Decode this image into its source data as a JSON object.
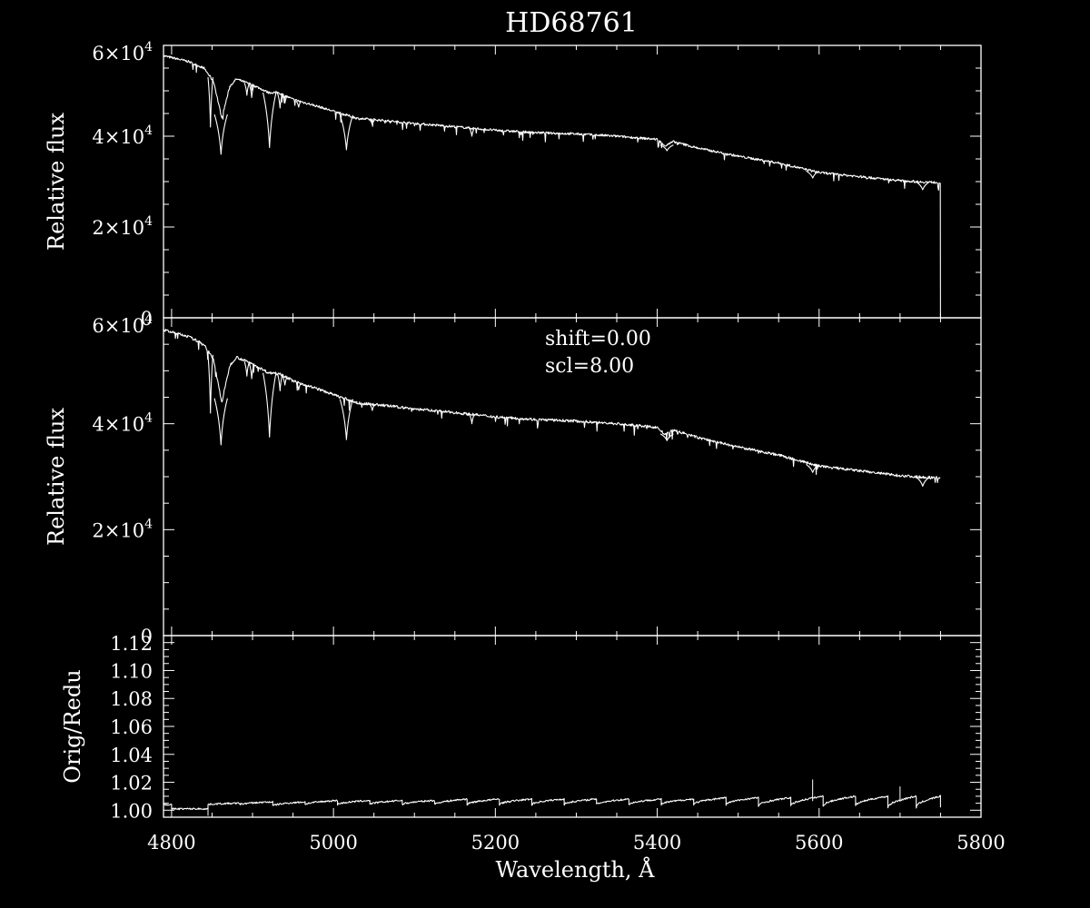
{
  "chart_data": [
    {
      "type": "line",
      "panel": "top",
      "title": "HD68761",
      "ylabel": "Relative flux",
      "xlabel": "",
      "xlim": [
        4790,
        5800
      ],
      "ylim": [
        0,
        60000
      ],
      "y_ticks": [
        {
          "value": 0,
          "base": "0",
          "exp": ""
        },
        {
          "value": 20000,
          "base": "2×10",
          "exp": "4"
        },
        {
          "value": 40000,
          "base": "4×10",
          "exp": "4"
        },
        {
          "value": 60000,
          "base": "6×10",
          "exp": "4"
        }
      ],
      "x": [
        4790,
        4820,
        4840,
        4852,
        4862,
        4872,
        4880,
        4900,
        4920,
        4932,
        4950,
        4980,
        5000,
        5030,
        5060,
        5100,
        5150,
        5200,
        5250,
        5300,
        5350,
        5400,
        5410,
        5420,
        5450,
        5500,
        5550,
        5600,
        5650,
        5700,
        5730,
        5750
      ],
      "values": [
        57700,
        56500,
        55000,
        52000,
        44000,
        51000,
        52600,
        51300,
        49600,
        49600,
        48100,
        46600,
        45500,
        43900,
        43500,
        42800,
        42100,
        41300,
        40800,
        40500,
        40000,
        39300,
        37900,
        38800,
        37400,
        35600,
        34100,
        32000,
        31100,
        30200,
        29900,
        29800
      ],
      "series": [
        {
          "name": "",
          "x_drop": 5750,
          "drop_to": 0
        }
      ],
      "absorption_lines": [
        {
          "x": 4848,
          "min": 42000
        },
        {
          "x": 4861,
          "min": 36000
        },
        {
          "x": 4893,
          "min": 49000
        },
        {
          "x": 4899,
          "min": 48500
        },
        {
          "x": 4921,
          "min": 37500
        },
        {
          "x": 4934,
          "min": 46200
        },
        {
          "x": 4940,
          "min": 47300
        },
        {
          "x": 4957,
          "min": 46400
        },
        {
          "x": 5016,
          "min": 37000
        },
        {
          "x": 5048,
          "min": 42500
        },
        {
          "x": 5171,
          "min": 40000
        },
        {
          "x": 5412,
          "min": 36800
        },
        {
          "x": 5592,
          "min": 30800
        },
        {
          "x": 5728,
          "min": 28200
        }
      ]
    },
    {
      "type": "line",
      "panel": "middle",
      "title": "",
      "ylabel": "Relative flux",
      "xlabel": "",
      "xlim": [
        4790,
        5800
      ],
      "ylim": [
        0,
        60000
      ],
      "y_ticks": [
        {
          "value": 0,
          "base": "0",
          "exp": ""
        },
        {
          "value": 20000,
          "base": "2×10",
          "exp": "4"
        },
        {
          "value": 40000,
          "base": "4×10",
          "exp": "4"
        },
        {
          "value": 60000,
          "base": "6×10",
          "exp": "4"
        }
      ],
      "annotations": [
        "shift=0.00",
        "scl=8.00"
      ],
      "x": [
        4790,
        4820,
        4840,
        4852,
        4862,
        4872,
        4880,
        4900,
        4920,
        4932,
        4950,
        4980,
        5000,
        5030,
        5060,
        5100,
        5150,
        5200,
        5250,
        5300,
        5350,
        5400,
        5410,
        5420,
        5450,
        5500,
        5550,
        5600,
        5650,
        5700,
        5730,
        5750
      ],
      "values": [
        57700,
        56500,
        55000,
        52000,
        44000,
        51000,
        52600,
        51300,
        49600,
        49600,
        48100,
        46600,
        45500,
        43900,
        43500,
        42800,
        42100,
        41300,
        40800,
        40500,
        40000,
        39300,
        37900,
        38800,
        37400,
        35600,
        34100,
        32000,
        31100,
        30200,
        29900,
        29800
      ],
      "absorption_lines": [
        {
          "x": 4848,
          "min": 42000
        },
        {
          "x": 4861,
          "min": 36000
        },
        {
          "x": 4893,
          "min": 49000
        },
        {
          "x": 4899,
          "min": 48500
        },
        {
          "x": 4921,
          "min": 37500
        },
        {
          "x": 4934,
          "min": 46200
        },
        {
          "x": 4940,
          "min": 47300
        },
        {
          "x": 4957,
          "min": 46400
        },
        {
          "x": 5016,
          "min": 37000
        },
        {
          "x": 5048,
          "min": 42500
        },
        {
          "x": 5171,
          "min": 40000
        },
        {
          "x": 5412,
          "min": 36800
        },
        {
          "x": 5592,
          "min": 30800
        },
        {
          "x": 5728,
          "min": 28200
        }
      ]
    },
    {
      "type": "line",
      "panel": "bottom",
      "title": "",
      "ylabel": "Orig/Redu",
      "xlabel": "Wavelength, Å",
      "xlim": [
        4790,
        5800
      ],
      "ylim": [
        0.995,
        1.125
      ],
      "x_ticks": [
        4800,
        5000,
        5200,
        5400,
        5600,
        5800
      ],
      "y_ticks": [
        {
          "value": 1.0,
          "base": "1.00",
          "exp": ""
        },
        {
          "value": 1.02,
          "base": "1.02",
          "exp": ""
        },
        {
          "value": 1.04,
          "base": "1.04",
          "exp": ""
        },
        {
          "value": 1.06,
          "base": "1.06",
          "exp": ""
        },
        {
          "value": 1.08,
          "base": "1.08",
          "exp": ""
        },
        {
          "value": 1.1,
          "base": "1.10",
          "exp": ""
        },
        {
          "value": 1.12,
          "base": "1.12",
          "exp": ""
        }
      ],
      "segments": [
        {
          "x0": 4790,
          "x1": 4800,
          "y0": 1.004,
          "y1": 1.004
        },
        {
          "x0": 4800,
          "x1": 4845,
          "y0": 1.001,
          "y1": 1.001
        },
        {
          "x0": 4845,
          "x1": 4885,
          "y0": 1.004,
          "y1": 1.005
        },
        {
          "x0": 4885,
          "x1": 4925,
          "y0": 1.004,
          "y1": 1.006
        },
        {
          "x0": 4925,
          "x1": 4965,
          "y0": 1.003,
          "y1": 1.006
        },
        {
          "x0": 4965,
          "x1": 5005,
          "y0": 1.004,
          "y1": 1.007
        },
        {
          "x0": 5005,
          "x1": 5045,
          "y0": 1.004,
          "y1": 1.007
        },
        {
          "x0": 5045,
          "x1": 5085,
          "y0": 1.004,
          "y1": 1.007
        },
        {
          "x0": 5085,
          "x1": 5125,
          "y0": 1.004,
          "y1": 1.007
        },
        {
          "x0": 5125,
          "x1": 5165,
          "y0": 1.004,
          "y1": 1.008
        },
        {
          "x0": 5165,
          "x1": 5205,
          "y0": 1.004,
          "y1": 1.008
        },
        {
          "x0": 5205,
          "x1": 5245,
          "y0": 1.004,
          "y1": 1.008
        },
        {
          "x0": 5245,
          "x1": 5285,
          "y0": 1.004,
          "y1": 1.008
        },
        {
          "x0": 5285,
          "x1": 5325,
          "y0": 1.004,
          "y1": 1.008
        },
        {
          "x0": 5325,
          "x1": 5365,
          "y0": 1.004,
          "y1": 1.008
        },
        {
          "x0": 5365,
          "x1": 5405,
          "y0": 1.004,
          "y1": 1.008
        },
        {
          "x0": 5405,
          "x1": 5445,
          "y0": 1.004,
          "y1": 1.008
        },
        {
          "x0": 5445,
          "x1": 5485,
          "y0": 1.004,
          "y1": 1.009
        },
        {
          "x0": 5485,
          "x1": 5525,
          "y0": 1.004,
          "y1": 1.009
        },
        {
          "x0": 5525,
          "x1": 5565,
          "y0": 1.003,
          "y1": 1.009
        },
        {
          "x0": 5565,
          "x1": 5605,
          "y0": 1.003,
          "y1": 1.01
        },
        {
          "x0": 5605,
          "x1": 5645,
          "y0": 1.003,
          "y1": 1.01
        },
        {
          "x0": 5645,
          "x1": 5685,
          "y0": 1.003,
          "y1": 1.01
        },
        {
          "x0": 5685,
          "x1": 5720,
          "y0": 1.002,
          "y1": 1.01
        },
        {
          "x0": 5720,
          "x1": 5750,
          "y0": 1.002,
          "y1": 1.01
        }
      ],
      "spikes": [
        {
          "x": 5592,
          "peak": 1.022
        },
        {
          "x": 5700,
          "peak": 1.017
        },
        {
          "x": 4845,
          "peak": 0.996
        }
      ]
    }
  ]
}
